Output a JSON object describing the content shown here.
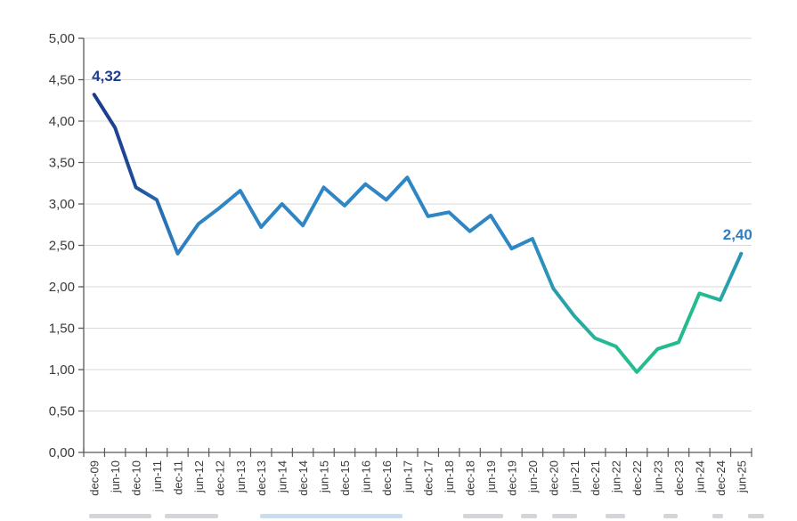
{
  "chart_data": {
    "type": "line",
    "title": "",
    "categories": [
      "dec-09",
      "jun-10",
      "dec-10",
      "jun-11",
      "dec-11",
      "jun-12",
      "dec-12",
      "jun-13",
      "dec-13",
      "jun-14",
      "dec-14",
      "jun-15",
      "dec-15",
      "jun-16",
      "dec-16",
      "jun-17",
      "dec-17",
      "jun-18",
      "dec-18",
      "jun-19",
      "dec-19",
      "jun-20",
      "dec-20",
      "jun-21",
      "dec-21",
      "jun-22",
      "dec-22",
      "jun-23",
      "dec-23",
      "jun-24",
      "dec-24",
      "jun-25"
    ],
    "values": [
      4.32,
      3.92,
      3.2,
      3.05,
      2.4,
      2.76,
      2.95,
      3.16,
      2.72,
      3.0,
      2.74,
      3.2,
      2.98,
      3.24,
      3.05,
      3.32,
      2.85,
      2.9,
      2.67,
      2.86,
      2.46,
      2.58,
      1.98,
      1.65,
      1.38,
      1.28,
      0.97,
      1.25,
      1.33,
      1.92,
      1.84,
      2.4
    ],
    "ylim": [
      0,
      5
    ],
    "ytick_step": 0.5,
    "ytick_labels": [
      "0,00",
      "0,50",
      "1,00",
      "1,50",
      "2,00",
      "2,50",
      "3,00",
      "3,50",
      "4,00",
      "4,50",
      "5,00"
    ],
    "grid": "horizontal",
    "legend": "none",
    "xlabel": "",
    "ylabel": "",
    "start_label": {
      "text": "4,32",
      "color": "#1f3d8d"
    },
    "end_label": {
      "text": "2,40",
      "color": "#2e7fc2"
    },
    "line_gradient": [
      {
        "offset": 0.0,
        "color": "#1c388c"
      },
      {
        "offset": 0.016,
        "color": "#1d3a8e"
      },
      {
        "offset": 0.068,
        "color": "#1e4897"
      },
      {
        "offset": 0.141,
        "color": "#2f7fc0"
      },
      {
        "offset": 0.195,
        "color": "#2e86c4"
      },
      {
        "offset": 0.661,
        "color": "#2e86c4"
      },
      {
        "offset": 0.728,
        "color": "#2aa4a8"
      },
      {
        "offset": 0.781,
        "color": "#24bb92"
      },
      {
        "offset": 0.928,
        "color": "#22bd8e"
      },
      {
        "offset": 0.957,
        "color": "#27a7a5"
      },
      {
        "offset": 0.985,
        "color": "#2b8fc0"
      },
      {
        "offset": 1.0,
        "color": "#2b8fc0"
      }
    ],
    "line_width": 4,
    "grid_color": "#d9d9d9",
    "axis_color": "#595959",
    "tick_label_color": "#3a3a3a",
    "background": "#ffffff"
  }
}
